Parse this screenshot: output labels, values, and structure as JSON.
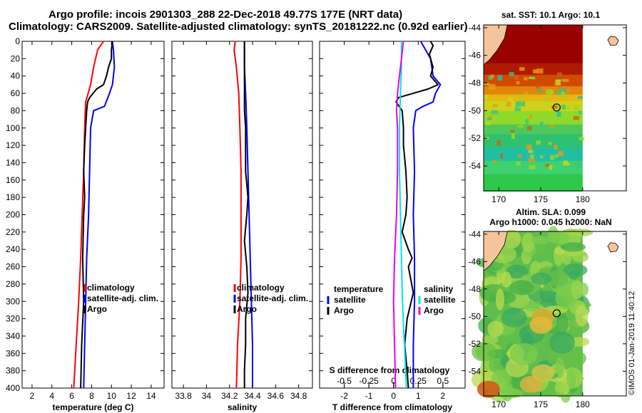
{
  "header": {
    "title_line1": "Argo profile: incois 2901303_288 22-Dec-2018 49.77S 177E (NRT data)",
    "title_line2": "Climatology: CARS2009. Satellite-adjusted climatology: synTS_20181222.nc (0.92d earlier)"
  },
  "colors": {
    "climatology": "#ff0000",
    "satellite_adj": "#0000ff",
    "argo": "#000000",
    "satellite_sdiff": "#00e5ee",
    "argo_sdiff": "#ee00ee",
    "land": "#f6c49a"
  },
  "depth_axis": {
    "range": [
      0,
      400
    ],
    "ticks": [
      "0",
      "20",
      "40",
      "60",
      "80",
      "100",
      "120",
      "140",
      "160",
      "180",
      "200",
      "220",
      "240",
      "260",
      "280",
      "300",
      "320",
      "340",
      "360",
      "380",
      "400"
    ]
  },
  "chart_data": [
    {
      "type": "line",
      "id": "temperature",
      "xlabel": "temperature (deg C)",
      "xlim": [
        1,
        15.3
      ],
      "ylim": [
        0,
        400
      ],
      "x_ticks": [
        "2",
        "4",
        "6",
        "8",
        "10",
        "12",
        "14"
      ],
      "legend": [
        "climatology",
        "satellite-adj. clim.",
        "Argo"
      ],
      "series": [
        {
          "name": "climatology",
          "depth": [
            0,
            10,
            30,
            50,
            70,
            100,
            150,
            200,
            250,
            300,
            350,
            400
          ],
          "values": [
            9.2,
            8.6,
            8.2,
            7.9,
            7.4,
            7.3,
            7.2,
            7.05,
            6.9,
            6.7,
            6.45,
            6.2
          ]
        },
        {
          "name": "satellite-adj. clim.",
          "depth": [
            0,
            10,
            30,
            50,
            60,
            75,
            80,
            100,
            150,
            200,
            250,
            300,
            350,
            400
          ],
          "values": [
            10.1,
            10.2,
            10.3,
            10.1,
            9.8,
            9.3,
            8.2,
            7.9,
            7.8,
            7.7,
            7.5,
            7.4,
            7.3,
            7.2
          ]
        },
        {
          "name": "Argo",
          "depth": [
            0,
            10,
            20,
            30,
            40,
            50,
            55,
            65,
            70,
            80,
            100,
            120,
            150,
            180,
            200,
            250,
            300,
            350,
            400
          ],
          "values": [
            10.1,
            10.0,
            10.0,
            9.7,
            9.5,
            9.2,
            8.5,
            7.8,
            7.6,
            7.5,
            7.4,
            7.3,
            7.2,
            7.3,
            7.2,
            7.1,
            7.2,
            7.0,
            6.9
          ]
        }
      ]
    },
    {
      "type": "line",
      "id": "salinity",
      "xlabel": "salinity",
      "xlim": [
        33.7,
        34.92
      ],
      "ylim": [
        0,
        400
      ],
      "x_ticks": [
        "33.8",
        "34",
        "34.2",
        "34.4",
        "34.6",
        "34.8"
      ],
      "legend": [
        "climatology",
        "satellite-adj. clim.",
        "Argo"
      ],
      "series": [
        {
          "name": "climatology",
          "depth": [
            0,
            10,
            30,
            60,
            100,
            150,
            200,
            250,
            300,
            350,
            400
          ],
          "values": [
            34.25,
            34.24,
            34.26,
            34.28,
            34.29,
            34.3,
            34.3,
            34.3,
            34.29,
            34.27,
            34.26
          ]
        },
        {
          "name": "satellite-adj. clim.",
          "depth": [
            0,
            10,
            30,
            60,
            100,
            150,
            200,
            250,
            300,
            350,
            400
          ],
          "values": [
            34.33,
            34.33,
            34.33,
            34.34,
            34.35,
            34.36,
            34.37,
            34.38,
            34.39,
            34.4,
            34.4
          ]
        },
        {
          "name": "Argo",
          "depth": [
            0,
            20,
            60,
            80,
            100,
            150,
            180,
            200,
            230,
            260,
            290,
            320,
            350,
            380,
            400
          ],
          "values": [
            34.33,
            34.33,
            34.33,
            34.33,
            34.34,
            34.34,
            34.36,
            34.35,
            34.33,
            34.35,
            34.36,
            34.34,
            34.34,
            34.33,
            34.33
          ]
        }
      ]
    },
    {
      "type": "line",
      "id": "difference",
      "xlabel": "T difference from climatology",
      "xlabel2": "S difference from climatology",
      "xlim": [
        -3,
        2.9
      ],
      "x2lim": [
        -0.75,
        0.725
      ],
      "ylim": [
        0,
        400
      ],
      "x_ticks": [
        "-2",
        "-1",
        "0",
        "1",
        "2"
      ],
      "x2_ticks": [
        "-0.5",
        "-0.25",
        "0",
        "0.25",
        "0.5"
      ],
      "legend_temperature_title": "temperature",
      "legend_salinity_title": "salinity",
      "legend_temperature": [
        "satellite",
        "Argo"
      ],
      "legend_salinity": [
        "satellite",
        "Argo"
      ],
      "series": [
        {
          "name": "T satellite",
          "axis": "T",
          "depth": [
            0,
            20,
            40,
            50,
            60,
            70,
            75,
            80,
            100,
            150,
            200,
            250,
            300,
            350,
            400
          ],
          "values": [
            1.1,
            1.5,
            1.6,
            1.9,
            1.7,
            1.6,
            1.2,
            0.9,
            0.8,
            0.85,
            0.8,
            0.85,
            0.85,
            0.8,
            0.8
          ]
        },
        {
          "name": "T Argo",
          "axis": "T",
          "depth": [
            0,
            5,
            15,
            30,
            40,
            50,
            55,
            65,
            70,
            80,
            100,
            120,
            150,
            180,
            200,
            220,
            240,
            250,
            260,
            290,
            320,
            350,
            380,
            400
          ],
          "values": [
            1.5,
            1.6,
            1.45,
            1.6,
            1.5,
            1.8,
            1.4,
            0.2,
            0.1,
            0.35,
            0.4,
            0.4,
            0.5,
            0.55,
            0.5,
            0.35,
            0.6,
            0.75,
            0.6,
            0.8,
            0.55,
            0.45,
            0.55,
            0.6
          ]
        },
        {
          "name": "S satellite",
          "axis": "S",
          "depth": [
            0,
            30,
            60,
            100,
            150,
            200,
            250,
            300,
            350,
            400
          ],
          "values": [
            0.08,
            0.08,
            0.07,
            0.06,
            0.06,
            0.07,
            0.08,
            0.09,
            0.11,
            0.13
          ]
        },
        {
          "name": "S Argo",
          "axis": "S",
          "depth": [
            0,
            20,
            40,
            60,
            80,
            100,
            150,
            200,
            250,
            300,
            350,
            400
          ],
          "values": [
            0.1,
            0.08,
            0.06,
            0.04,
            0.03,
            0.04,
            0.04,
            0.03,
            0.01,
            0.0,
            0.01,
            0.02
          ]
        }
      ]
    }
  ],
  "maps": [
    {
      "id": "sst",
      "title": "sat. SST: 10.1 Argo: 10.1",
      "title2": "",
      "lat_ticks": [
        "-44",
        "-46",
        "-48",
        "-50",
        "-52",
        "-54"
      ],
      "lon_ticks": [
        "170",
        "175",
        "180"
      ],
      "lat_range": [
        -55.8,
        -43.8
      ],
      "lon_range": [
        168.2,
        185.2
      ],
      "marker": {
        "lon": 176.9,
        "lat": -49.77
      }
    },
    {
      "id": "sla",
      "title": "Altim. SLA: 0.099",
      "title2": "Argo h1000: 0.045 h2000: NaN",
      "lat_ticks": [
        "-44",
        "-46",
        "-48",
        "-50",
        "-52",
        "-54"
      ],
      "lon_ticks": [
        "170",
        "175",
        "180"
      ],
      "lat_range": [
        -55.8,
        -43.8
      ],
      "lon_range": [
        168.2,
        185.2
      ],
      "marker": {
        "lon": 176.9,
        "lat": -49.77
      }
    }
  ],
  "stamp": "©IMOS 01-Jan-2019 11:40:12"
}
